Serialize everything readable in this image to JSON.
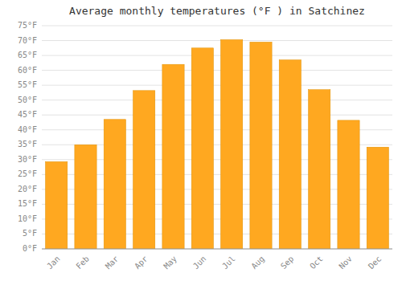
{
  "chart_data": {
    "type": "bar",
    "title": "Average monthly temperatures (°F ) in Satchinez",
    "categories": [
      "Jan",
      "Feb",
      "Mar",
      "Apr",
      "May",
      "Jun",
      "Jul",
      "Aug",
      "Sep",
      "Oct",
      "Nov",
      "Dec"
    ],
    "values": [
      29.3,
      35.0,
      43.5,
      53.2,
      62.0,
      67.5,
      70.3,
      69.5,
      63.5,
      53.5,
      43.2,
      34.2
    ],
    "color": "#FFA820",
    "ylim": [
      0,
      75
    ],
    "yticks": [
      {
        "value": 0,
        "label": "0°F"
      },
      {
        "value": 5,
        "label": "5°F"
      },
      {
        "value": 10,
        "label": "10°F"
      },
      {
        "value": 15,
        "label": "15°F"
      },
      {
        "value": 20,
        "label": "20°F"
      },
      {
        "value": 25,
        "label": "25°F"
      },
      {
        "value": 30,
        "label": "30°F"
      },
      {
        "value": 35,
        "label": "35°F"
      },
      {
        "value": 40,
        "label": "40°F"
      },
      {
        "value": 45,
        "label": "45°F"
      },
      {
        "value": 50,
        "label": "50°F"
      },
      {
        "value": 55,
        "label": "55°F"
      },
      {
        "value": 60,
        "label": "60°F"
      },
      {
        "value": 65,
        "label": "65°F"
      },
      {
        "value": 70,
        "label": "70°F"
      },
      {
        "value": 75,
        "label": "75°F"
      }
    ],
    "grid": true
  }
}
